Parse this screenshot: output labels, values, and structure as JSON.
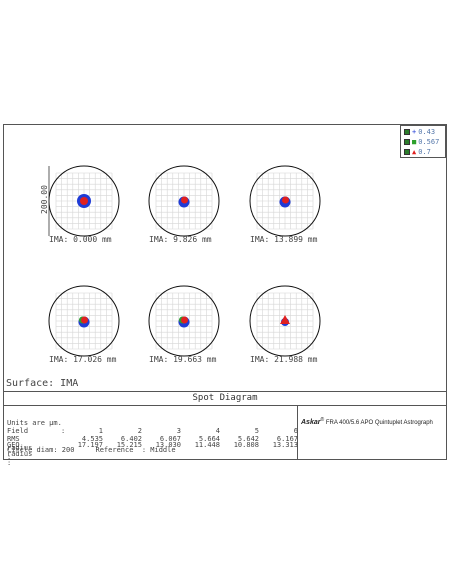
{
  "legend": [
    {
      "label": "0.43",
      "color": "#1f3bd6",
      "symbol": "+",
      "check": "#2b7d2b"
    },
    {
      "label": "0.567",
      "color": "#2ca02c",
      "symbol": "■",
      "check": "#2b7d2b"
    },
    {
      "label": "0.7",
      "color": "#e02020",
      "symbol": "▲",
      "check": "#2b7d2b"
    }
  ],
  "scale_label": "200.00",
  "spots": [
    {
      "ima": "IMA: 0.000 mm",
      "blob": "large",
      "layers": [
        "#1f3bd6",
        "#e02020"
      ]
    },
    {
      "ima": "IMA: 9.826 mm",
      "blob": "medium",
      "layers": [
        "#1f3bd6",
        "#e02020"
      ]
    },
    {
      "ima": "IMA: 13.899 mm",
      "blob": "medium",
      "layers": [
        "#1f3bd6",
        "#e02020"
      ]
    },
    {
      "ima": "IMA: 17.026 mm",
      "blob": "medium",
      "layers": [
        "#1f3bd6",
        "#2ca02c",
        "#e02020"
      ]
    },
    {
      "ima": "IMA: 19.663 mm",
      "blob": "medium",
      "layers": [
        "#1f3bd6",
        "#2ca02c",
        "#e02020"
      ]
    },
    {
      "ima": "IMA: 21.988 mm",
      "blob": "triangle",
      "layers": [
        "#1f3bd6",
        "#2ca02c",
        "#e02020"
      ]
    }
  ],
  "surface_label": "Surface: IMA",
  "title": "Spot Diagram",
  "table": {
    "units": "Units are µm.",
    "field_label": "Field",
    "field_values": [
      "1",
      "2",
      "3",
      "4",
      "5",
      "6"
    ],
    "rms_label": "RMS radius :",
    "rms_values": [
      "4.535",
      "6.402",
      "6.067",
      "5.664",
      "5.642",
      "6.167"
    ],
    "geo_label": "GEO radius :",
    "geo_values": [
      "17.197",
      "15.215",
      "13.030",
      "11.448",
      "10.808",
      "13.313"
    ],
    "circle_line": "Circle diam: 200     Reference  : Middle"
  },
  "brand": {
    "name": "Askar",
    "sup": "®",
    "text": " FRA 400/5.6 APO Quintuplet Astrograph"
  }
}
